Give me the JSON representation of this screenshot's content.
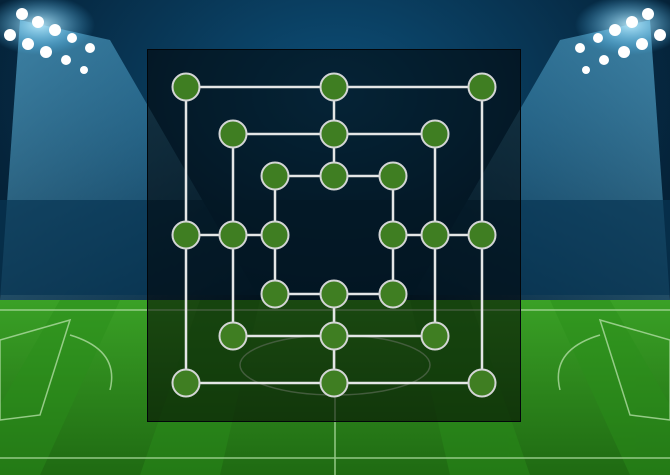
{
  "game": {
    "type": "nine-mens-morris",
    "rings": [
      "outer",
      "middle",
      "inner"
    ],
    "point_color": "#3f7e22",
    "point_stroke": "#d4d6d6",
    "line_color": "#e4e6e6",
    "board_background": "rgba(0,0,0,0.55)",
    "points": [
      {
        "ring": "outer",
        "pos": "top-left",
        "state": "empty"
      },
      {
        "ring": "outer",
        "pos": "top",
        "state": "empty"
      },
      {
        "ring": "outer",
        "pos": "top-right",
        "state": "empty"
      },
      {
        "ring": "outer",
        "pos": "right",
        "state": "empty"
      },
      {
        "ring": "outer",
        "pos": "bottom-right",
        "state": "empty"
      },
      {
        "ring": "outer",
        "pos": "bottom",
        "state": "empty"
      },
      {
        "ring": "outer",
        "pos": "bottom-left",
        "state": "empty"
      },
      {
        "ring": "outer",
        "pos": "left",
        "state": "empty"
      },
      {
        "ring": "middle",
        "pos": "top-left",
        "state": "empty"
      },
      {
        "ring": "middle",
        "pos": "top",
        "state": "empty"
      },
      {
        "ring": "middle",
        "pos": "top-right",
        "state": "empty"
      },
      {
        "ring": "middle",
        "pos": "right",
        "state": "empty"
      },
      {
        "ring": "middle",
        "pos": "bottom-right",
        "state": "empty"
      },
      {
        "ring": "middle",
        "pos": "bottom",
        "state": "empty"
      },
      {
        "ring": "middle",
        "pos": "bottom-left",
        "state": "empty"
      },
      {
        "ring": "middle",
        "pos": "left",
        "state": "empty"
      },
      {
        "ring": "inner",
        "pos": "top-left",
        "state": "empty"
      },
      {
        "ring": "inner",
        "pos": "top",
        "state": "empty"
      },
      {
        "ring": "inner",
        "pos": "top-right",
        "state": "empty"
      },
      {
        "ring": "inner",
        "pos": "right",
        "state": "empty"
      },
      {
        "ring": "inner",
        "pos": "bottom-right",
        "state": "empty"
      },
      {
        "ring": "inner",
        "pos": "bottom",
        "state": "empty"
      },
      {
        "ring": "inner",
        "pos": "bottom-left",
        "state": "empty"
      },
      {
        "ring": "inner",
        "pos": "left",
        "state": "empty"
      }
    ]
  },
  "background": {
    "scene": "stadium-football-pitch",
    "sky_color": "#062a44",
    "light_color": "#7fd8ff",
    "grass_color": "#2f8a1c",
    "field_line_color": "#a8d89a"
  }
}
